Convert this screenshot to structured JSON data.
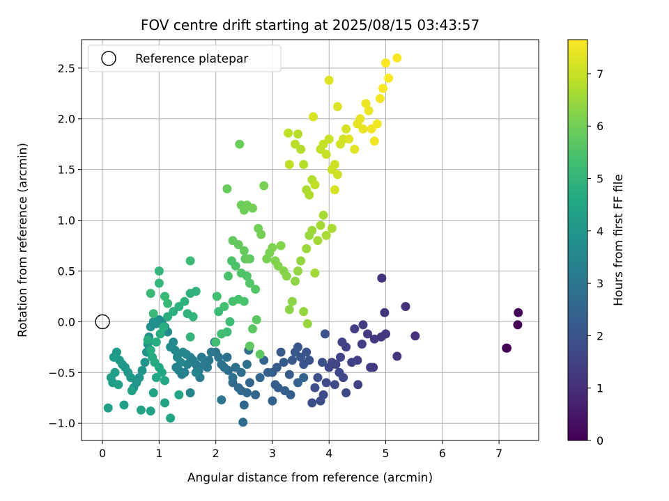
{
  "chart_data": {
    "type": "scatter",
    "title": "FOV centre drift starting at 2025/08/15 03:43:57",
    "xlabel": "Angular distance from reference (arcmin)",
    "ylabel": "Rotation from reference (arcmin)",
    "colorbar_label": "Hours from first FF file",
    "xlim": [
      -0.37,
      7.7
    ],
    "ylim": [
      -1.17,
      2.78
    ],
    "x_ticks": [
      0,
      1,
      2,
      3,
      4,
      5,
      6,
      7
    ],
    "y_ticks": [
      -1.0,
      -0.5,
      0.0,
      0.5,
      1.0,
      1.5,
      2.0,
      2.5
    ],
    "x_tick_labels": [
      "0",
      "1",
      "2",
      "3",
      "4",
      "5",
      "6",
      "7"
    ],
    "y_tick_labels": [
      "−1.0",
      "−0.5",
      "0.0",
      "0.5",
      "1.0",
      "1.5",
      "2.0",
      "2.5"
    ],
    "colorbar_range": [
      0,
      7.65
    ],
    "colorbar_ticks": [
      0,
      1,
      2,
      3,
      4,
      5,
      6,
      7
    ],
    "colorbar_tick_labels": [
      "0",
      "1",
      "2",
      "3",
      "4",
      "5",
      "6",
      "7"
    ],
    "colormap": "viridis",
    "grid": true,
    "legend": {
      "placement": "top-left",
      "entries": [
        {
          "label": "Reference platepar",
          "marker": "open-circle"
        }
      ]
    },
    "reference_point": {
      "x": 0,
      "y": 0
    },
    "points": [
      [
        7.13,
        -0.26,
        0.02
      ],
      [
        7.14,
        -0.26,
        0.03
      ],
      [
        7.33,
        -0.03,
        0.05
      ],
      [
        7.34,
        0.09,
        0.07
      ],
      [
        5.35,
        0.15,
        1.05
      ],
      [
        5.52,
        -0.14,
        1.08
      ],
      [
        5.2,
        -0.34,
        1.12
      ],
      [
        4.93,
        0.43,
        1.15
      ],
      [
        4.98,
        0.09,
        1.18
      ],
      [
        4.92,
        -0.15,
        1.2
      ],
      [
        5.0,
        -0.12,
        1.22
      ],
      [
        4.8,
        -0.17,
        1.25
      ],
      [
        4.68,
        -0.12,
        1.28
      ],
      [
        4.73,
        -0.45,
        1.3
      ],
      [
        4.78,
        -0.45,
        1.32
      ],
      [
        4.6,
        -0.03,
        1.35
      ],
      [
        4.45,
        -0.07,
        1.38
      ],
      [
        4.58,
        -0.22,
        1.4
      ],
      [
        4.5,
        -0.38,
        1.42
      ],
      [
        4.51,
        -0.62,
        1.45
      ],
      [
        4.4,
        -0.4,
        1.48
      ],
      [
        4.3,
        -0.25,
        1.5
      ],
      [
        4.23,
        -0.2,
        1.52
      ],
      [
        4.2,
        -0.35,
        1.55
      ],
      [
        4.12,
        -0.42,
        1.58
      ],
      [
        4.05,
        -0.4,
        1.6
      ],
      [
        4.0,
        -0.45,
        1.62
      ],
      [
        4.18,
        -0.5,
        1.65
      ],
      [
        4.25,
        -0.55,
        1.68
      ],
      [
        4.3,
        -0.7,
        1.7
      ],
      [
        4.1,
        -0.62,
        1.72
      ],
      [
        3.95,
        -0.6,
        1.75
      ],
      [
        3.9,
        -0.72,
        1.78
      ],
      [
        3.85,
        -0.78,
        1.8
      ],
      [
        3.7,
        -0.8,
        1.82
      ],
      [
        3.75,
        -0.65,
        1.85
      ],
      [
        3.8,
        -0.55,
        1.88
      ],
      [
        3.88,
        -0.4,
        1.9
      ],
      [
        3.93,
        -0.12,
        1.92
      ],
      [
        3.65,
        -0.38,
        1.95
      ],
      [
        3.6,
        -0.3,
        1.98
      ],
      [
        3.55,
        -0.42,
        2.0
      ],
      [
        3.5,
        -0.35,
        2.02
      ],
      [
        3.45,
        -0.25,
        2.05
      ],
      [
        3.4,
        -0.3,
        2.08
      ],
      [
        3.35,
        -0.38,
        2.1
      ],
      [
        3.3,
        -0.52,
        2.12
      ],
      [
        3.2,
        -0.4,
        2.15
      ],
      [
        3.15,
        -0.3,
        2.18
      ],
      [
        3.08,
        -0.45,
        2.2
      ],
      [
        3.0,
        -0.5,
        2.22
      ],
      [
        3.05,
        -0.62,
        2.25
      ],
      [
        3.1,
        -0.65,
        2.28
      ],
      [
        3.22,
        -0.68,
        2.3
      ],
      [
        3.32,
        -0.72,
        2.32
      ],
      [
        3.45,
        -0.6,
        2.35
      ],
      [
        3.55,
        -0.55,
        2.38
      ],
      [
        3.0,
        -0.78,
        2.4
      ],
      [
        2.92,
        -0.5,
        2.42
      ],
      [
        2.85,
        -0.38,
        2.45
      ],
      [
        2.78,
        -0.55,
        2.48
      ],
      [
        2.7,
        -0.72,
        2.5
      ],
      [
        2.6,
        -0.6,
        2.52
      ],
      [
        2.55,
        -0.7,
        2.55
      ],
      [
        2.5,
        -0.82,
        2.58
      ],
      [
        2.45,
        -0.68,
        2.6
      ],
      [
        2.4,
        -0.65,
        2.62
      ],
      [
        2.3,
        -0.6,
        2.65
      ],
      [
        2.22,
        -0.48,
        2.68
      ],
      [
        2.48,
        -0.99,
        2.7
      ],
      [
        2.58,
        -0.28,
        2.72
      ],
      [
        2.55,
        -0.42,
        2.75
      ],
      [
        2.45,
        -0.5,
        2.78
      ],
      [
        2.35,
        -0.45,
        2.8
      ],
      [
        2.3,
        -0.55,
        2.82
      ],
      [
        2.2,
        -0.35,
        2.85
      ],
      [
        2.15,
        -0.45,
        2.88
      ],
      [
        2.1,
        -0.42,
        2.9
      ],
      [
        2.05,
        -0.35,
        2.92
      ],
      [
        2.0,
        -0.3,
        2.95
      ],
      [
        2.1,
        -0.77,
        2.98
      ],
      [
        1.98,
        -0.2,
        3.0
      ],
      [
        1.92,
        -0.3,
        3.02
      ],
      [
        1.88,
        -0.38,
        3.05
      ],
      [
        1.85,
        -0.45,
        3.08
      ],
      [
        1.8,
        -0.42,
        3.1
      ],
      [
        1.75,
        -0.35,
        3.12
      ],
      [
        1.72,
        -0.55,
        3.15
      ],
      [
        1.7,
        -0.48,
        3.18
      ],
      [
        1.68,
        -0.45,
        3.2
      ],
      [
        1.65,
        -0.42,
        3.22
      ],
      [
        1.6,
        -0.38,
        3.25
      ],
      [
        1.55,
        -0.35,
        3.28
      ],
      [
        1.5,
        -0.42,
        3.3
      ],
      [
        1.45,
        -0.5,
        3.32
      ],
      [
        1.4,
        -0.52,
        3.35
      ],
      [
        1.35,
        -0.48,
        3.38
      ],
      [
        1.3,
        -0.45,
        3.4
      ],
      [
        1.55,
        -0.7,
        3.42
      ],
      [
        1.65,
        -0.5,
        3.45
      ],
      [
        1.48,
        -0.32,
        3.48
      ],
      [
        1.42,
        -0.3,
        3.5
      ],
      [
        1.38,
        -0.4,
        3.52
      ],
      [
        1.32,
        -0.35,
        3.55
      ],
      [
        1.28,
        -0.28,
        3.58
      ],
      [
        1.25,
        -0.2,
        3.6
      ],
      [
        1.2,
        -0.25,
        3.62
      ],
      [
        1.15,
        -0.1,
        3.65
      ],
      [
        1.1,
        -0.05,
        3.68
      ],
      [
        1.05,
        0.0,
        3.7
      ],
      [
        1.0,
        0.02,
        3.72
      ],
      [
        0.95,
        -0.02,
        3.75
      ],
      [
        0.9,
        0.0,
        3.78
      ],
      [
        0.85,
        -0.05,
        3.8
      ],
      [
        0.82,
        -0.15,
        3.82
      ],
      [
        0.8,
        -0.22,
        3.85
      ],
      [
        0.78,
        -0.3,
        3.88
      ],
      [
        0.75,
        -0.4,
        3.9
      ],
      [
        0.7,
        -0.48,
        3.92
      ],
      [
        0.65,
        -0.55,
        3.95
      ],
      [
        0.6,
        -0.6,
        3.98
      ],
      [
        0.55,
        -0.65,
        4.0
      ],
      [
        0.5,
        -0.55,
        4.02
      ],
      [
        0.45,
        -0.5,
        4.05
      ],
      [
        0.4,
        -0.45,
        4.08
      ],
      [
        0.35,
        -0.42,
        4.1
      ],
      [
        0.3,
        -0.38,
        4.12
      ],
      [
        0.25,
        -0.3,
        4.15
      ],
      [
        0.2,
        -0.35,
        4.18
      ],
      [
        0.15,
        -0.55,
        4.2
      ],
      [
        0.18,
        -0.6,
        4.22
      ],
      [
        0.22,
        -0.5,
        4.25
      ],
      [
        0.28,
        -0.62,
        4.28
      ],
      [
        0.1,
        -0.85,
        4.3
      ],
      [
        0.38,
        -0.82,
        4.32
      ],
      [
        0.52,
        -0.68,
        4.35
      ],
      [
        0.68,
        -0.87,
        4.38
      ],
      [
        0.85,
        -0.88,
        4.4
      ],
      [
        0.9,
        -0.7,
        4.42
      ],
      [
        1.1,
        -0.8,
        4.45
      ],
      [
        1.2,
        -0.95,
        4.48
      ],
      [
        1.35,
        -0.72,
        4.5
      ],
      [
        0.95,
        -0.55,
        4.52
      ],
      [
        1.05,
        -0.5,
        4.55
      ],
      [
        1.1,
        -0.58,
        4.58
      ],
      [
        1.0,
        -0.45,
        4.6
      ],
      [
        0.92,
        -0.4,
        4.62
      ],
      [
        0.88,
        -0.35,
        4.65
      ],
      [
        0.85,
        -0.28,
        4.68
      ],
      [
        0.8,
        -0.18,
        4.7
      ],
      [
        0.95,
        -0.2,
        4.72
      ],
      [
        1.02,
        -0.12,
        4.75
      ],
      [
        1.08,
        -0.05,
        4.78
      ],
      [
        1.15,
        0.05,
        4.8
      ],
      [
        1.25,
        0.1,
        4.82
      ],
      [
        1.35,
        0.15,
        4.85
      ],
      [
        1.45,
        0.2,
        4.88
      ],
      [
        1.55,
        0.28,
        4.9
      ],
      [
        1.65,
        0.3,
        4.92
      ],
      [
        1.5,
        0.08,
        4.95
      ],
      [
        1.6,
        0.05,
        4.98
      ],
      [
        1.55,
        -0.15,
        5.0
      ],
      [
        1.0,
        0.5,
        5.02
      ],
      [
        1.0,
        0.38,
        5.05
      ],
      [
        1.1,
        0.25,
        5.08
      ],
      [
        1.15,
        0.18,
        5.1
      ],
      [
        0.85,
        0.28,
        5.12
      ],
      [
        0.9,
        0.08,
        5.15
      ],
      [
        1.55,
        0.6,
        5.18
      ],
      [
        2.05,
        0.1,
        5.2
      ],
      [
        2.2,
        -0.1,
        5.22
      ],
      [
        2.25,
        0.0,
        5.25
      ],
      [
        2.1,
        -0.12,
        5.28
      ],
      [
        2.0,
        -0.2,
        5.3
      ],
      [
        2.02,
        0.25,
        5.32
      ],
      [
        2.15,
        0.15,
        5.35
      ],
      [
        2.3,
        0.2,
        5.38
      ],
      [
        2.4,
        0.22,
        5.4
      ],
      [
        2.5,
        0.2,
        5.42
      ],
      [
        2.22,
        0.45,
        5.45
      ],
      [
        2.28,
        0.6,
        5.48
      ],
      [
        2.35,
        0.55,
        5.5
      ],
      [
        2.45,
        0.48,
        5.52
      ],
      [
        2.55,
        0.45,
        5.55
      ],
      [
        2.6,
        0.38,
        5.58
      ],
      [
        2.7,
        0.32,
        5.6
      ],
      [
        2.52,
        0.62,
        5.62
      ],
      [
        2.6,
        0.62,
        5.65
      ],
      [
        2.65,
        -0.07,
        5.68
      ],
      [
        2.72,
        0.02,
        5.7
      ],
      [
        2.78,
        -0.32,
        5.72
      ],
      [
        2.6,
        -0.24,
        5.75
      ],
      [
        2.3,
        0.8,
        5.78
      ],
      [
        2.4,
        0.76,
        5.8
      ],
      [
        2.5,
        0.7,
        5.82
      ],
      [
        2.55,
        0.62,
        5.85
      ],
      [
        2.2,
        1.31,
        5.88
      ],
      [
        2.42,
        1.75,
        5.9
      ],
      [
        2.45,
        1.15,
        5.92
      ],
      [
        2.5,
        1.1,
        5.95
      ],
      [
        2.55,
        1.15,
        5.98
      ],
      [
        2.65,
        1.12,
        6.0
      ],
      [
        2.75,
        0.92,
        6.02
      ],
      [
        2.8,
        0.86,
        6.05
      ],
      [
        2.85,
        1.34,
        6.08
      ],
      [
        2.9,
        0.62,
        6.1
      ],
      [
        2.95,
        0.68,
        6.12
      ],
      [
        3.0,
        0.73,
        6.15
      ],
      [
        3.05,
        0.6,
        6.18
      ],
      [
        3.1,
        0.55,
        6.2
      ],
      [
        3.15,
        0.75,
        6.22
      ],
      [
        3.2,
        0.5,
        6.25
      ],
      [
        3.25,
        0.45,
        6.28
      ],
      [
        3.3,
        0.12,
        6.3
      ],
      [
        3.35,
        0.2,
        6.32
      ],
      [
        3.4,
        0.4,
        6.35
      ],
      [
        3.45,
        0.5,
        6.38
      ],
      [
        3.5,
        0.6,
        6.4
      ],
      [
        3.55,
        0.1,
        6.42
      ],
      [
        3.62,
        -0.02,
        6.45
      ],
      [
        3.6,
        0.72,
        6.48
      ],
      [
        3.65,
        0.85,
        6.5
      ],
      [
        3.7,
        0.9,
        6.52
      ],
      [
        3.75,
        0.48,
        6.55
      ],
      [
        3.8,
        0.8,
        6.58
      ],
      [
        3.85,
        0.95,
        6.6
      ],
      [
        3.9,
        1.05,
        6.62
      ],
      [
        3.95,
        0.85,
        6.65
      ],
      [
        4.05,
        0.92,
        6.68
      ],
      [
        3.6,
        1.3,
        6.7
      ],
      [
        3.65,
        1.25,
        6.72
      ],
      [
        3.7,
        1.4,
        6.75
      ],
      [
        3.55,
        1.55,
        6.78
      ],
      [
        3.5,
        1.7,
        6.8
      ],
      [
        3.45,
        1.85,
        6.82
      ],
      [
        3.4,
        1.75,
        6.85
      ],
      [
        3.28,
        1.86,
        6.88
      ],
      [
        3.3,
        1.55,
        6.9
      ],
      [
        3.75,
        1.35,
        6.92
      ],
      [
        3.85,
        1.7,
        6.95
      ],
      [
        3.9,
        1.75,
        6.98
      ],
      [
        3.95,
        1.65,
        7.0
      ],
      [
        4.0,
        1.8,
        7.02
      ],
      [
        4.05,
        1.5,
        7.05
      ],
      [
        4.1,
        1.55,
        7.08
      ],
      [
        4.15,
        1.45,
        7.1
      ],
      [
        4.2,
        1.75,
        7.12
      ],
      [
        4.25,
        1.8,
        7.15
      ],
      [
        4.3,
        1.9,
        7.18
      ],
      [
        4.1,
        1.3,
        7.2
      ],
      [
        3.72,
        2.02,
        7.22
      ],
      [
        4.15,
        2.12,
        7.25
      ],
      [
        4.0,
        2.38,
        7.28
      ],
      [
        4.35,
        1.8,
        7.3
      ],
      [
        4.45,
        1.7,
        7.32
      ],
      [
        4.5,
        1.95,
        7.35
      ],
      [
        4.55,
        2.0,
        7.38
      ],
      [
        4.6,
        1.9,
        7.4
      ],
      [
        4.65,
        2.15,
        7.42
      ],
      [
        4.7,
        2.08,
        7.45
      ],
      [
        4.75,
        1.9,
        7.48
      ],
      [
        4.8,
        1.78,
        7.5
      ],
      [
        4.85,
        1.95,
        7.52
      ],
      [
        4.9,
        2.2,
        7.55
      ],
      [
        4.95,
        2.3,
        7.58
      ],
      [
        5.0,
        2.55,
        7.6
      ],
      [
        5.05,
        2.4,
        7.62
      ],
      [
        5.2,
        2.6,
        7.64
      ]
    ]
  }
}
